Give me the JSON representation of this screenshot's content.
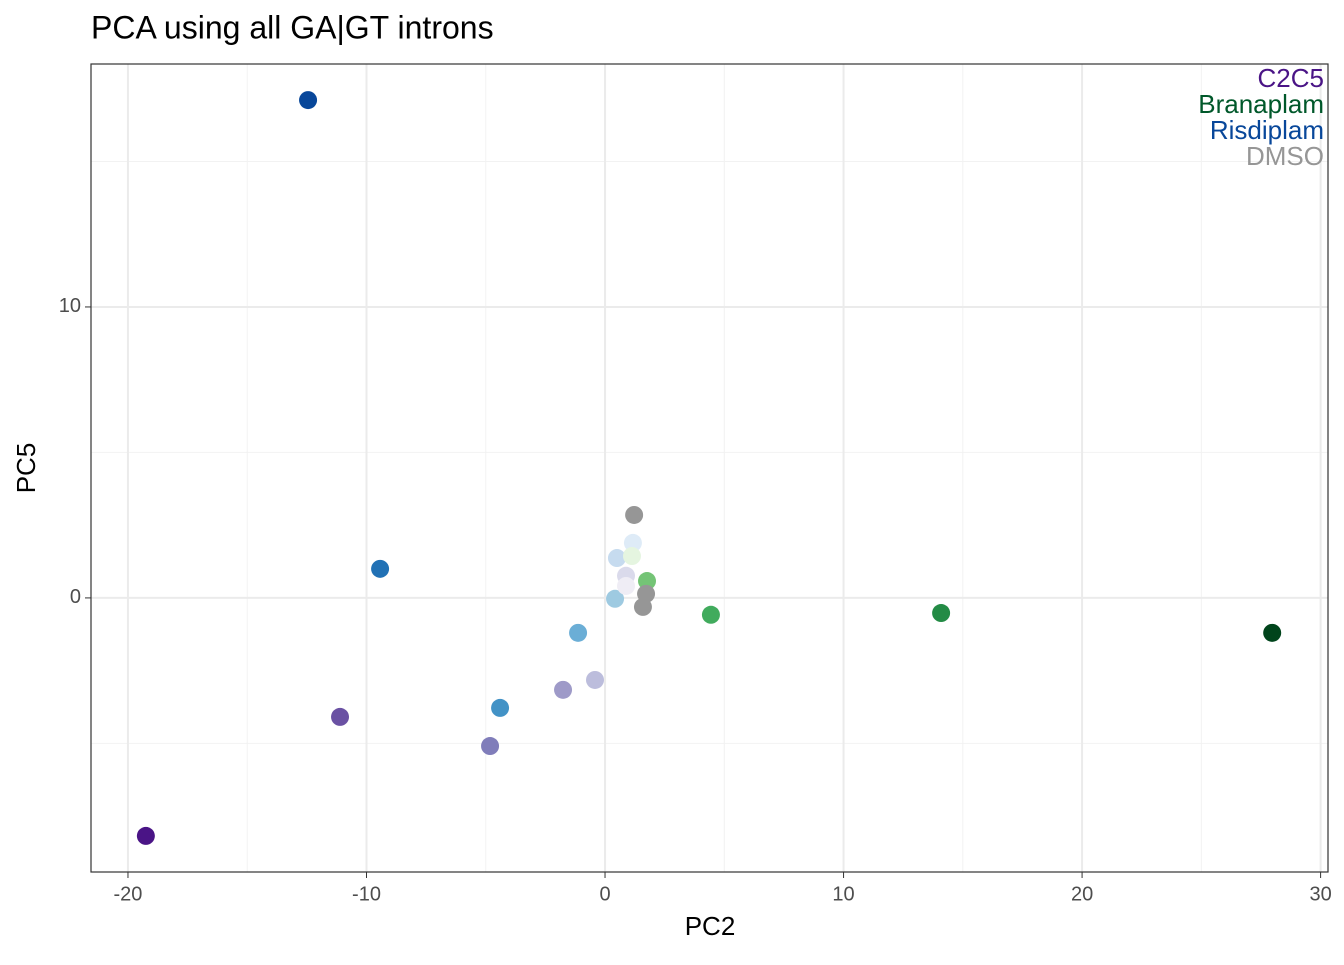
{
  "chart_data": {
    "type": "scatter",
    "title": "PCA using all GA|GT introns",
    "xlabel": "PC2",
    "ylabel": "PC5",
    "x": [
      -12.45,
      -9.43,
      -19.25,
      -11.11,
      -4.82,
      -4.4,
      -1.76,
      -0.42,
      -1.13,
      0.42,
      0.5,
      1.22,
      1.17,
      1.13,
      1.76,
      0.88,
      0.88,
      1.72,
      1.59,
      4.44,
      14.09,
      27.97
    ],
    "y": [
      17.11,
      1.0,
      -8.18,
      -4.09,
      -5.09,
      -3.78,
      -3.16,
      -2.82,
      -1.2,
      -0.03,
      1.37,
      2.85,
      1.89,
      1.44,
      0.58,
      0.76,
      0.41,
      0.14,
      -0.31,
      -0.58,
      -0.52,
      -1.2
    ],
    "colors": [
      "#08479a",
      "#2171b5",
      "#4a1486",
      "#6a51a3",
      "#807dba",
      "#4292c6",
      "#9e9ac8",
      "#bcbddc",
      "#6baed6",
      "#9ecae1",
      "#c6dbef",
      "#969696",
      "#deebf7",
      "#e5f5e0",
      "#74c476",
      "#dadaeb",
      "#efedf5",
      "#969696",
      "#969696",
      "#41ab5d",
      "#238b45",
      "#00441b"
    ],
    "xlim": [
      -21.55,
      30.31
    ],
    "ylim": [
      -9.42,
      18.35
    ],
    "xticks": [
      -20,
      -10,
      0,
      10,
      20,
      30
    ],
    "yticks": [
      0,
      10
    ],
    "xminor": [
      -15,
      -5,
      5,
      15,
      25
    ],
    "yminor": [
      -5,
      5,
      15
    ],
    "grid": true,
    "legend_position": "top-right",
    "legend": [
      {
        "name": "C2C5",
        "color": "#4a1486"
      },
      {
        "name": "Branaplam",
        "color": "#00582a"
      },
      {
        "name": "Risdiplam",
        "color": "#08479a"
      },
      {
        "name": "DMSO",
        "color": "#969696"
      }
    ]
  }
}
